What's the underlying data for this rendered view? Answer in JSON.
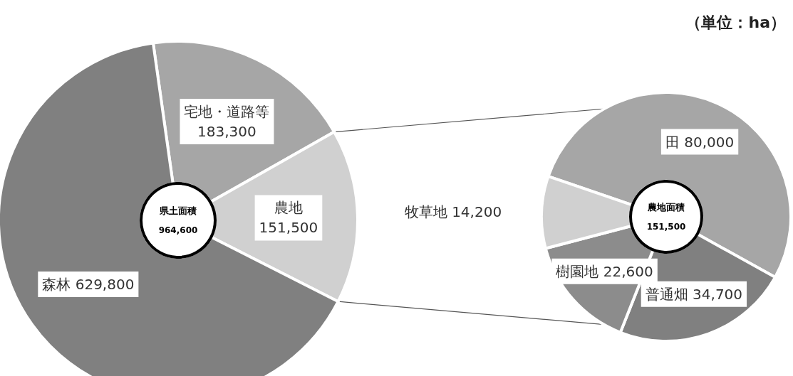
{
  "chart_data": [
    {
      "type": "donut",
      "categories": [
        "宅地・道路等",
        "農地",
        "森林"
      ],
      "values": [
        183300,
        151500,
        629800
      ],
      "colors": [
        "#a6a6a6",
        "#d0d0d0",
        "#808080"
      ],
      "value_labels": [
        "183,300",
        "151,500",
        "629,800"
      ],
      "annotations": [
        "県土面積",
        "964,600"
      ]
    },
    {
      "type": "donut",
      "categories": [
        "田",
        "普通畑",
        "樹園地",
        "牧草地"
      ],
      "values": [
        80000,
        34700,
        22600,
        14200
      ],
      "colors": [
        "#a6a6a6",
        "#808080",
        "#8c8c8c",
        "#d0d0d0"
      ],
      "value_labels": [
        "80,000",
        "34,700",
        "22,600",
        "14,200"
      ],
      "annotations": [
        "農地面積",
        "151,500",
        "（単位：ha）"
      ]
    }
  ]
}
